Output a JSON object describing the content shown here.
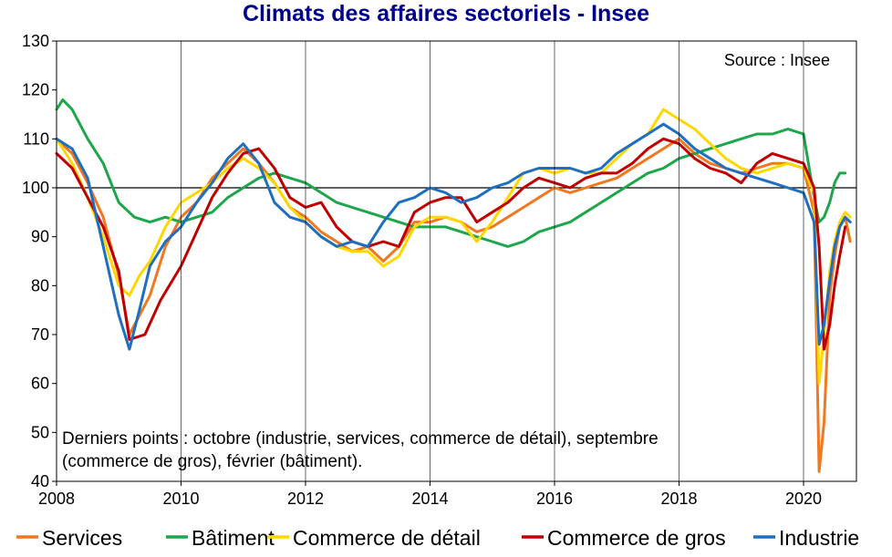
{
  "chart_data": {
    "type": "line",
    "title": "Climats des affaires sectoriels - Insee",
    "source": "Source : Insee",
    "note_lines": [
      "Derniers points : octobre (industrie, services, commerce de détail), septembre",
      "(commerce de gros), février (bâtiment)."
    ],
    "xlabel": "",
    "ylabel": "",
    "xlim": [
      2008,
      2020.85
    ],
    "ylim": [
      40,
      130
    ],
    "xticks": [
      "2008",
      "2010",
      "2012",
      "2014",
      "2016",
      "2018",
      "2020"
    ],
    "yticks": [
      "40",
      "50",
      "60",
      "70",
      "80",
      "90",
      "100",
      "110",
      "120",
      "130"
    ],
    "reference_line": 100,
    "grid": false,
    "legend_position": "bottom",
    "series": [
      {
        "name": "Services",
        "color": "#F07820",
        "x": [
          2008,
          2008.25,
          2008.5,
          2008.75,
          2009,
          2009.17,
          2009.5,
          2009.75,
          2010,
          2010.25,
          2010.5,
          2010.75,
          2011,
          2011.25,
          2011.5,
          2011.75,
          2012,
          2012.25,
          2012.5,
          2012.75,
          2013,
          2013.25,
          2013.5,
          2013.75,
          2014,
          2014.25,
          2014.5,
          2014.75,
          2015,
          2015.25,
          2015.5,
          2015.75,
          2016,
          2016.25,
          2016.5,
          2016.75,
          2017,
          2017.25,
          2017.5,
          2017.75,
          2018,
          2018.25,
          2018.5,
          2018.75,
          2019,
          2019.25,
          2019.5,
          2019.75,
          2020,
          2020.17,
          2020.25,
          2020.33,
          2020.42,
          2020.5,
          2020.58,
          2020.67,
          2020.75
        ],
        "values": [
          110,
          107,
          101,
          94,
          82,
          70,
          78,
          88,
          94,
          97,
          102,
          105,
          108,
          105,
          101,
          96,
          94,
          91,
          89,
          87,
          88,
          85,
          88,
          93,
          93,
          94,
          93,
          91,
          92,
          94,
          96,
          98,
          100,
          99,
          100,
          101,
          102,
          104,
          106,
          108,
          110,
          107,
          105,
          104,
          103,
          104,
          105,
          105,
          104,
          95,
          42,
          52,
          78,
          86,
          92,
          94,
          89
        ]
      },
      {
        "name": "Bâtiment",
        "color": "#1EA64B",
        "x": [
          2008,
          2008.1,
          2008.25,
          2008.5,
          2008.75,
          2009,
          2009.25,
          2009.5,
          2009.75,
          2010,
          2010.25,
          2010.5,
          2010.75,
          2011,
          2011.25,
          2011.5,
          2011.75,
          2012,
          2012.25,
          2012.5,
          2012.75,
          2013,
          2013.25,
          2013.5,
          2013.75,
          2014,
          2014.25,
          2014.5,
          2014.75,
          2015,
          2015.25,
          2015.5,
          2015.75,
          2016,
          2016.25,
          2016.5,
          2016.75,
          2017,
          2017.25,
          2017.5,
          2017.75,
          2018,
          2018.25,
          2018.5,
          2018.75,
          2019,
          2019.25,
          2019.5,
          2019.75,
          2020,
          2020.17,
          2020.25,
          2020.33,
          2020.42,
          2020.5,
          2020.58,
          2020.67
        ],
        "values": [
          116,
          118,
          116,
          110,
          105,
          97,
          94,
          93,
          94,
          93,
          94,
          95,
          98,
          100,
          102,
          103,
          102,
          101,
          99,
          97,
          96,
          95,
          94,
          93,
          92,
          92,
          92,
          91,
          90,
          89,
          88,
          89,
          91,
          92,
          93,
          95,
          97,
          99,
          101,
          103,
          104,
          106,
          107,
          108,
          109,
          110,
          111,
          111,
          112,
          111,
          98,
          93,
          94,
          97,
          101,
          103,
          103
        ]
      },
      {
        "name": "Commerce de détail",
        "color": "#FFD700",
        "x": [
          2008,
          2008.25,
          2008.5,
          2008.75,
          2009,
          2009.17,
          2009.33,
          2009.5,
          2009.75,
          2010,
          2010.25,
          2010.5,
          2010.75,
          2011,
          2011.25,
          2011.5,
          2011.75,
          2012,
          2012.25,
          2012.5,
          2012.75,
          2013,
          2013.25,
          2013.5,
          2013.75,
          2014,
          2014.25,
          2014.5,
          2014.75,
          2015,
          2015.25,
          2015.5,
          2015.75,
          2016,
          2016.25,
          2016.5,
          2016.75,
          2017,
          2017.25,
          2017.5,
          2017.75,
          2018,
          2018.25,
          2018.5,
          2018.75,
          2019,
          2019.25,
          2019.5,
          2019.75,
          2020,
          2020.17,
          2020.25,
          2020.33,
          2020.42,
          2020.5,
          2020.58,
          2020.67,
          2020.75
        ],
        "values": [
          110,
          105,
          98,
          90,
          80,
          78,
          82,
          85,
          92,
          97,
          99,
          101,
          104,
          106,
          104,
          101,
          96,
          93,
          90,
          88,
          87,
          87,
          84,
          86,
          92,
          94,
          94,
          93,
          89,
          93,
          98,
          103,
          104,
          103,
          104,
          103,
          103,
          106,
          109,
          111,
          116,
          114,
          112,
          109,
          106,
          104,
          103,
          104,
          105,
          104,
          99,
          60,
          70,
          83,
          89,
          93,
          95,
          94
        ]
      },
      {
        "name": "Commerce de gros",
        "color": "#C00000",
        "x": [
          2008,
          2008.25,
          2008.5,
          2008.75,
          2009,
          2009.17,
          2009.42,
          2009.67,
          2010,
          2010.25,
          2010.5,
          2010.75,
          2011,
          2011.25,
          2011.5,
          2011.75,
          2012,
          2012.25,
          2012.5,
          2012.75,
          2013,
          2013.25,
          2013.5,
          2013.75,
          2014,
          2014.25,
          2014.5,
          2014.75,
          2015,
          2015.25,
          2015.5,
          2015.75,
          2016,
          2016.25,
          2016.5,
          2016.75,
          2017,
          2017.25,
          2017.5,
          2017.75,
          2018,
          2018.25,
          2018.5,
          2018.75,
          2019,
          2019.25,
          2019.5,
          2019.75,
          2020,
          2020.17,
          2020.25,
          2020.33,
          2020.42,
          2020.5,
          2020.58,
          2020.67
        ],
        "values": [
          107,
          104,
          98,
          92,
          83,
          69,
          70,
          77,
          84,
          91,
          98,
          103,
          107,
          108,
          104,
          98,
          96,
          97,
          92,
          89,
          88,
          89,
          88,
          95,
          97,
          98,
          98,
          93,
          95,
          97,
          100,
          102,
          101,
          100,
          102,
          103,
          103,
          105,
          108,
          110,
          109,
          106,
          104,
          103,
          101,
          105,
          107,
          106,
          105,
          100,
          88,
          67,
          72,
          80,
          86,
          92
        ]
      },
      {
        "name": "Industrie",
        "color": "#1F6FC0",
        "x": [
          2008,
          2008.25,
          2008.5,
          2008.75,
          2009,
          2009.17,
          2009.33,
          2009.5,
          2009.75,
          2010,
          2010.25,
          2010.5,
          2010.75,
          2011,
          2011.25,
          2011.5,
          2011.75,
          2012,
          2012.25,
          2012.5,
          2012.75,
          2013,
          2013.25,
          2013.5,
          2013.75,
          2014,
          2014.25,
          2014.5,
          2014.75,
          2015,
          2015.25,
          2015.5,
          2015.75,
          2016,
          2016.25,
          2016.5,
          2016.75,
          2017,
          2017.25,
          2017.5,
          2017.75,
          2018,
          2018.25,
          2018.5,
          2018.75,
          2019,
          2019.25,
          2019.5,
          2019.75,
          2020,
          2020.17,
          2020.25,
          2020.33,
          2020.42,
          2020.5,
          2020.58,
          2020.67,
          2020.75
        ],
        "values": [
          110,
          108,
          102,
          88,
          74,
          67,
          75,
          84,
          89,
          92,
          97,
          101,
          106,
          109,
          105,
          97,
          94,
          93,
          90,
          88,
          89,
          88,
          93,
          97,
          98,
          100,
          99,
          97,
          98,
          100,
          101,
          103,
          104,
          104,
          104,
          103,
          104,
          107,
          109,
          111,
          113,
          111,
          108,
          106,
          104,
          103,
          102,
          101,
          100,
          99,
          93,
          68,
          72,
          81,
          88,
          92,
          94,
          93
        ]
      }
    ]
  }
}
